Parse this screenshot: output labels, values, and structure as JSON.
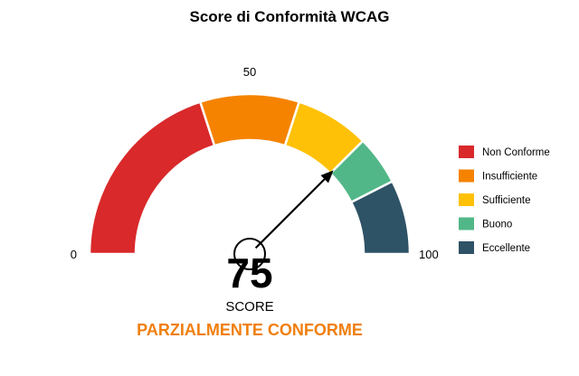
{
  "chart_data": {
    "type": "gauge",
    "title": "Score di Conformità WCAG",
    "min": 0,
    "max": 100,
    "ticks": [
      0,
      50,
      100
    ],
    "value": 75,
    "value_label": "SCORE",
    "status_text": "PARZIALMENTE CONFORME",
    "status_color": "#F07F0E",
    "segments": [
      {
        "name": "Non Conforme",
        "from": 0,
        "to": 40,
        "color": "#D9292A"
      },
      {
        "name": "Insufficiente",
        "from": 40,
        "to": 60,
        "color": "#F58300"
      },
      {
        "name": "Sufficiente",
        "from": 60,
        "to": 75,
        "color": "#FFC107"
      },
      {
        "name": "Buono",
        "from": 75,
        "to": 85,
        "color": "#52B788"
      },
      {
        "name": "Eccellente",
        "from": 85,
        "to": 100,
        "color": "#2E5266"
      }
    ],
    "needle_color": "#000000",
    "legend_position": "right"
  }
}
